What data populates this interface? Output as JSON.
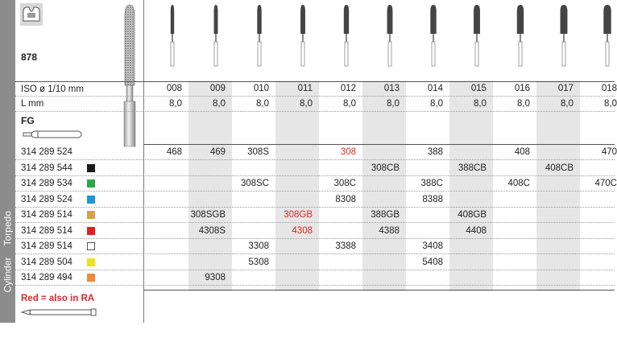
{
  "product": {
    "code": "878",
    "shank": "FG",
    "shape_names": [
      "Cylinder",
      "Torpedo"
    ],
    "note": "Red = also in RA"
  },
  "header_labels": {
    "iso": "ISO ø 1/10 mm",
    "length": "L mm"
  },
  "columns": [
    "008",
    "009",
    "010",
    "011",
    "012",
    "013",
    "014",
    "015",
    "016",
    "017",
    "018"
  ],
  "lengths": [
    "8,0",
    "8,0",
    "8,0",
    "8,0",
    "8,0",
    "8,0",
    "8,0",
    "8,0",
    "8,0",
    "8,0",
    "8,0"
  ],
  "rows": [
    {
      "ref": "314 289 524",
      "swatch": null,
      "cells": [
        "468",
        "469",
        "308S",
        "",
        "308",
        "",
        "388",
        "",
        "408",
        "",
        "470"
      ],
      "red": [
        4
      ]
    },
    {
      "ref": "314 289 544",
      "swatch": "#1a1a1a",
      "cells": [
        "",
        "",
        "",
        "",
        "",
        "308CB",
        "",
        "388CB",
        "",
        "408CB",
        ""
      ],
      "red": []
    },
    {
      "ref": "314 289 534",
      "swatch": "#2aa84a",
      "cells": [
        "",
        "",
        "308SC",
        "",
        "308C",
        "",
        "388C",
        "",
        "408C",
        "",
        "470C"
      ],
      "red": []
    },
    {
      "ref": "314 289 524",
      "swatch": "#1a9ad6",
      "cells": [
        "",
        "",
        "",
        "",
        "8308",
        "",
        "8388",
        "",
        "",
        "",
        ""
      ],
      "red": []
    },
    {
      "ref": "314 289 514",
      "swatch": "#d9a24a",
      "cells": [
        "",
        "308SGB",
        "",
        "308GB",
        "",
        "388GB",
        "",
        "408GB",
        "",
        "",
        ""
      ],
      "red": [
        3
      ]
    },
    {
      "ref": "314 289 514",
      "swatch": "#e0201e",
      "cells": [
        "",
        "4308S",
        "",
        "4308",
        "",
        "4388",
        "",
        "4408",
        "",
        "",
        ""
      ],
      "red": [
        3
      ]
    },
    {
      "ref": "314 289 514",
      "swatch": "#ffffff",
      "cells": [
        "",
        "",
        "3308",
        "",
        "3388",
        "",
        "3408",
        "",
        "",
        "",
        ""
      ],
      "red": []
    },
    {
      "ref": "314 289 504",
      "swatch": "#f2e01a",
      "cells": [
        "",
        "",
        "5308",
        "",
        "",
        "",
        "5408",
        "",
        "",
        "",
        ""
      ],
      "red": []
    },
    {
      "ref": "314 289 494",
      "swatch": "#ef8a3a",
      "cells": [
        "",
        "9308",
        "",
        "",
        "",
        "",
        "",
        "",
        "",
        "",
        ""
      ],
      "red": []
    }
  ]
}
